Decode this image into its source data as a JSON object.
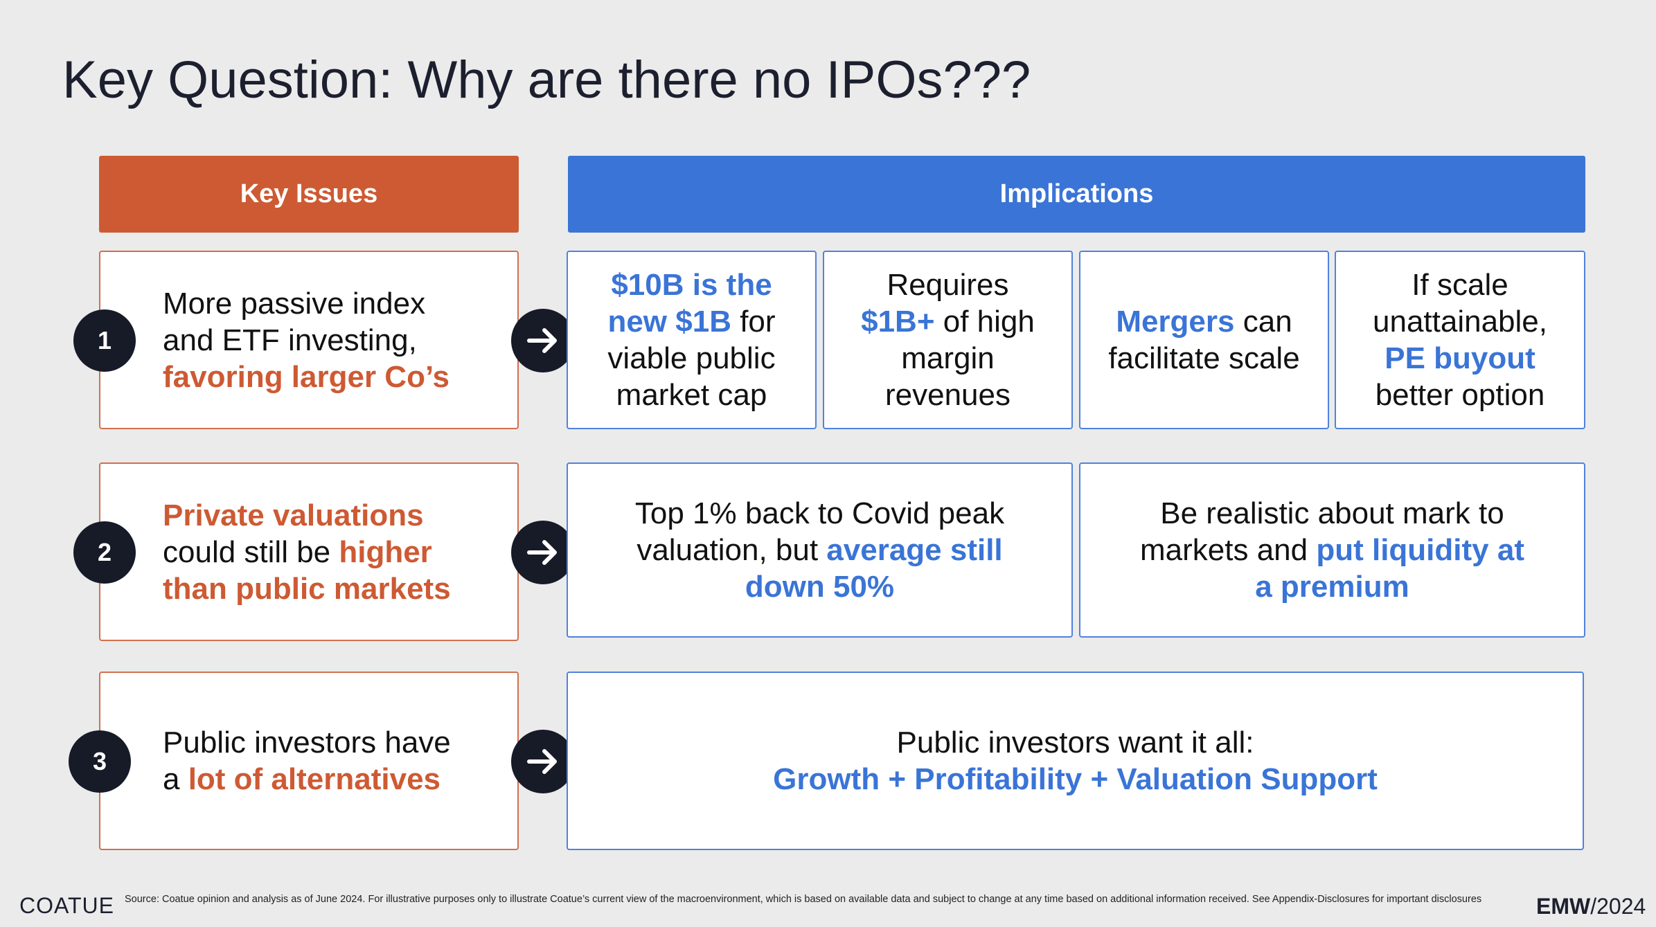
{
  "slide": {
    "title": "Key Question: Why are there no IPOs???",
    "headers": {
      "issues": "Key Issues",
      "implications": "Implications"
    }
  },
  "rows": [
    {
      "number": "1",
      "issue": {
        "line1": "More passive index",
        "line2": "and ETF investing,",
        "line3_highlight": "favoring larger Co’s"
      },
      "implications": [
        {
          "hl1": "$10B is the",
          "hl2": "new $1B",
          "t2": " for",
          "t3": "viable public",
          "t4": "market cap"
        },
        {
          "t1": "Requires",
          "hl2": "$1B+",
          "t2": " of high",
          "t3": "margin",
          "t4": "revenues"
        },
        {
          "hl1": "Mergers",
          "t1": " can",
          "t2": "facilitate scale"
        },
        {
          "t1": "If scale",
          "t2": "unattainable,",
          "hl3": "PE buyout",
          "t4": "better option"
        }
      ]
    },
    {
      "number": "2",
      "issue": {
        "hl1": "Private valuations",
        "t2": "could still be ",
        "hl2": "higher",
        "hl3": "than public markets"
      },
      "implications": [
        {
          "t1": "Top 1% back to Covid peak",
          "t2": "valuation, but ",
          "hl2": "average still",
          "hl3": "down 50%"
        },
        {
          "t1": "Be realistic about mark to",
          "t2": "markets and ",
          "hl2": "put liquidity at",
          "hl3": "a premium"
        }
      ]
    },
    {
      "number": "3",
      "issue": {
        "t1": "Public investors have",
        "t2": "a ",
        "hl2": "lot of alternatives"
      },
      "implications": [
        {
          "t1": "Public investors want it all:",
          "hl2": "Growth + Profitability + Valuation Support"
        }
      ]
    }
  ],
  "footer": {
    "logo": "COATUE",
    "source": "Source: Coatue opinion and analysis as of June 2024. For illustrative purposes only to illustrate Coatue’s current view of the macroenvironment, which is based on available data and subject to change at any time based on additional information received. See Appendix-Disclosures for important disclosures",
    "event_bold": "EMW",
    "event_rest": "/2024"
  },
  "icons": {
    "arrow": "arrow-right-icon"
  },
  "colors": {
    "orange": "#cd5a33",
    "blue": "#3a74d6",
    "dark": "#171a27",
    "background": "#ebebeb"
  }
}
